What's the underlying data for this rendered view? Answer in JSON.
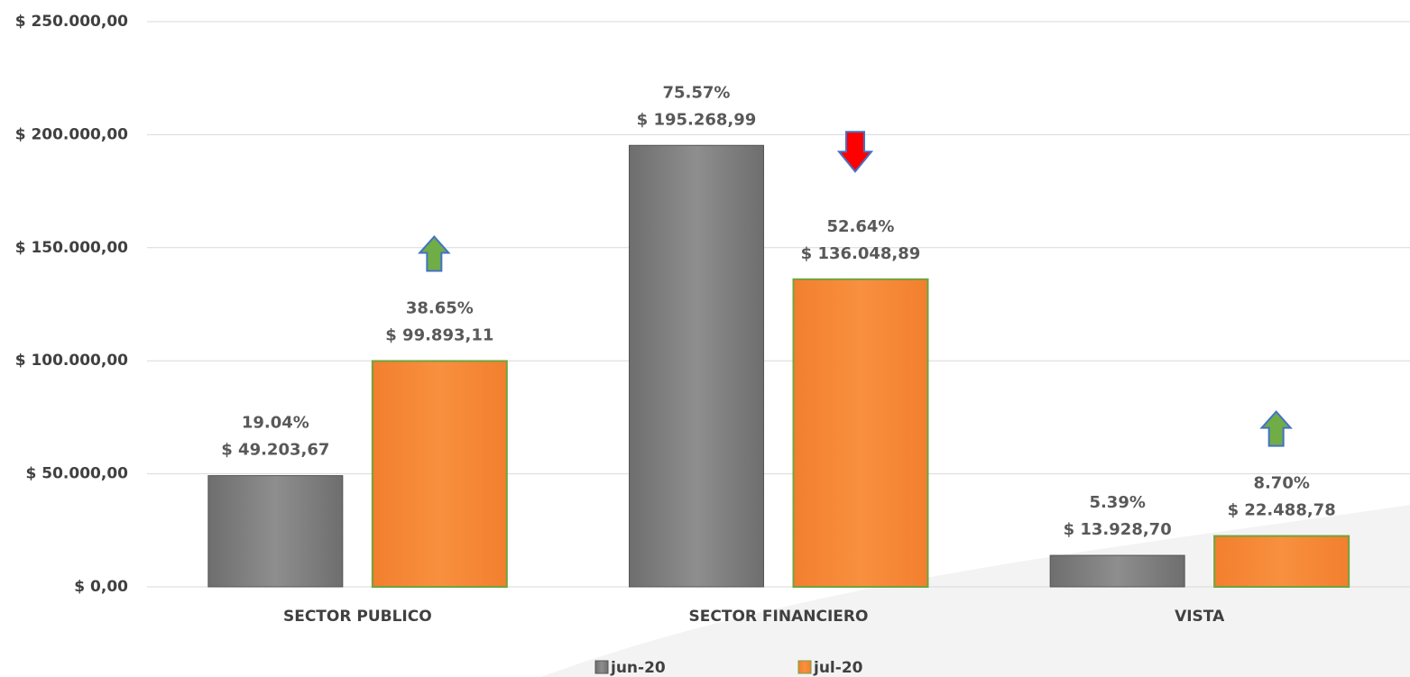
{
  "chart_data": {
    "type": "bar",
    "categories": [
      "SECTOR PUBLICO",
      "SECTOR FINANCIERO",
      "VISTA"
    ],
    "series": [
      {
        "name": "jun-20",
        "color": "#8a8a8a",
        "values": [
          49203.67,
          195268.99,
          13928.7
        ],
        "value_labels": [
          "$ 49.203,67",
          "$ 195.268,99",
          "$ 13.928,70"
        ],
        "share_labels": [
          "19.04%",
          "75.57%",
          "5.39%"
        ]
      },
      {
        "name": "jul-20",
        "color": "#f68a3c",
        "values": [
          99893.11,
          136048.89,
          22488.78
        ],
        "value_labels": [
          "$ 99.893,11",
          "$ 136.048,89",
          "$ 22.488,78"
        ],
        "share_labels": [
          "38.65%",
          "52.64%",
          "8.70%"
        ]
      }
    ],
    "ylim": [
      0,
      250000
    ],
    "yticks": [
      {
        "value": 0,
        "label": "$ 0,00"
      },
      {
        "value": 50000,
        "label": "$ 50.000,00"
      },
      {
        "value": 100000,
        "label": "$ 100.000,00"
      },
      {
        "value": 150000,
        "label": "$ 150.000,00"
      },
      {
        "value": 200000,
        "label": "$ 200.000,00"
      },
      {
        "value": 250000,
        "label": "$ 250.000,00"
      }
    ],
    "grid": true,
    "legend": "bottom"
  }
}
